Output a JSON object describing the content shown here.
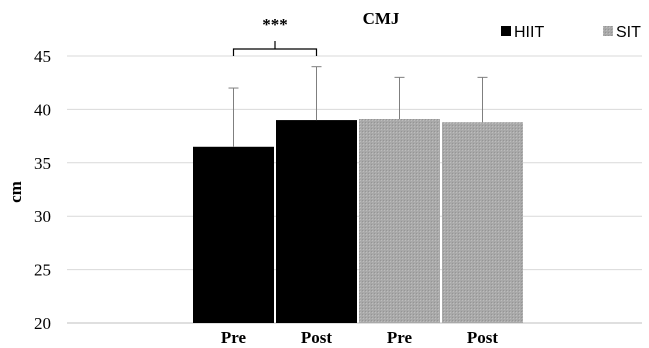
{
  "chart_data": {
    "type": "bar",
    "title": "CMJ",
    "xlabel": "",
    "ylabel": "cm",
    "ylim": [
      20,
      45
    ],
    "yticks": [
      20,
      25,
      30,
      35,
      40,
      45
    ],
    "grid": true,
    "legend_position": "top-right",
    "categories": [
      "Pre",
      "Post",
      "Pre",
      "Post"
    ],
    "bars": [
      {
        "category": "Pre",
        "series": "HIIT",
        "value": 36.5,
        "error_upper": 42.0
      },
      {
        "category": "Post",
        "series": "HIIT",
        "value": 39.0,
        "error_upper": 44.0
      },
      {
        "category": "Pre",
        "series": "SIT",
        "value": 39.1,
        "error_upper": 43.0
      },
      {
        "category": "Post",
        "series": "SIT",
        "value": 38.8,
        "error_upper": 43.0
      }
    ],
    "series": [
      {
        "name": "HIIT",
        "color": "#000000"
      },
      {
        "name": "SIT",
        "color": "#a6a6a6"
      }
    ],
    "annotation": {
      "text": "***",
      "between": [
        0,
        1
      ]
    }
  }
}
